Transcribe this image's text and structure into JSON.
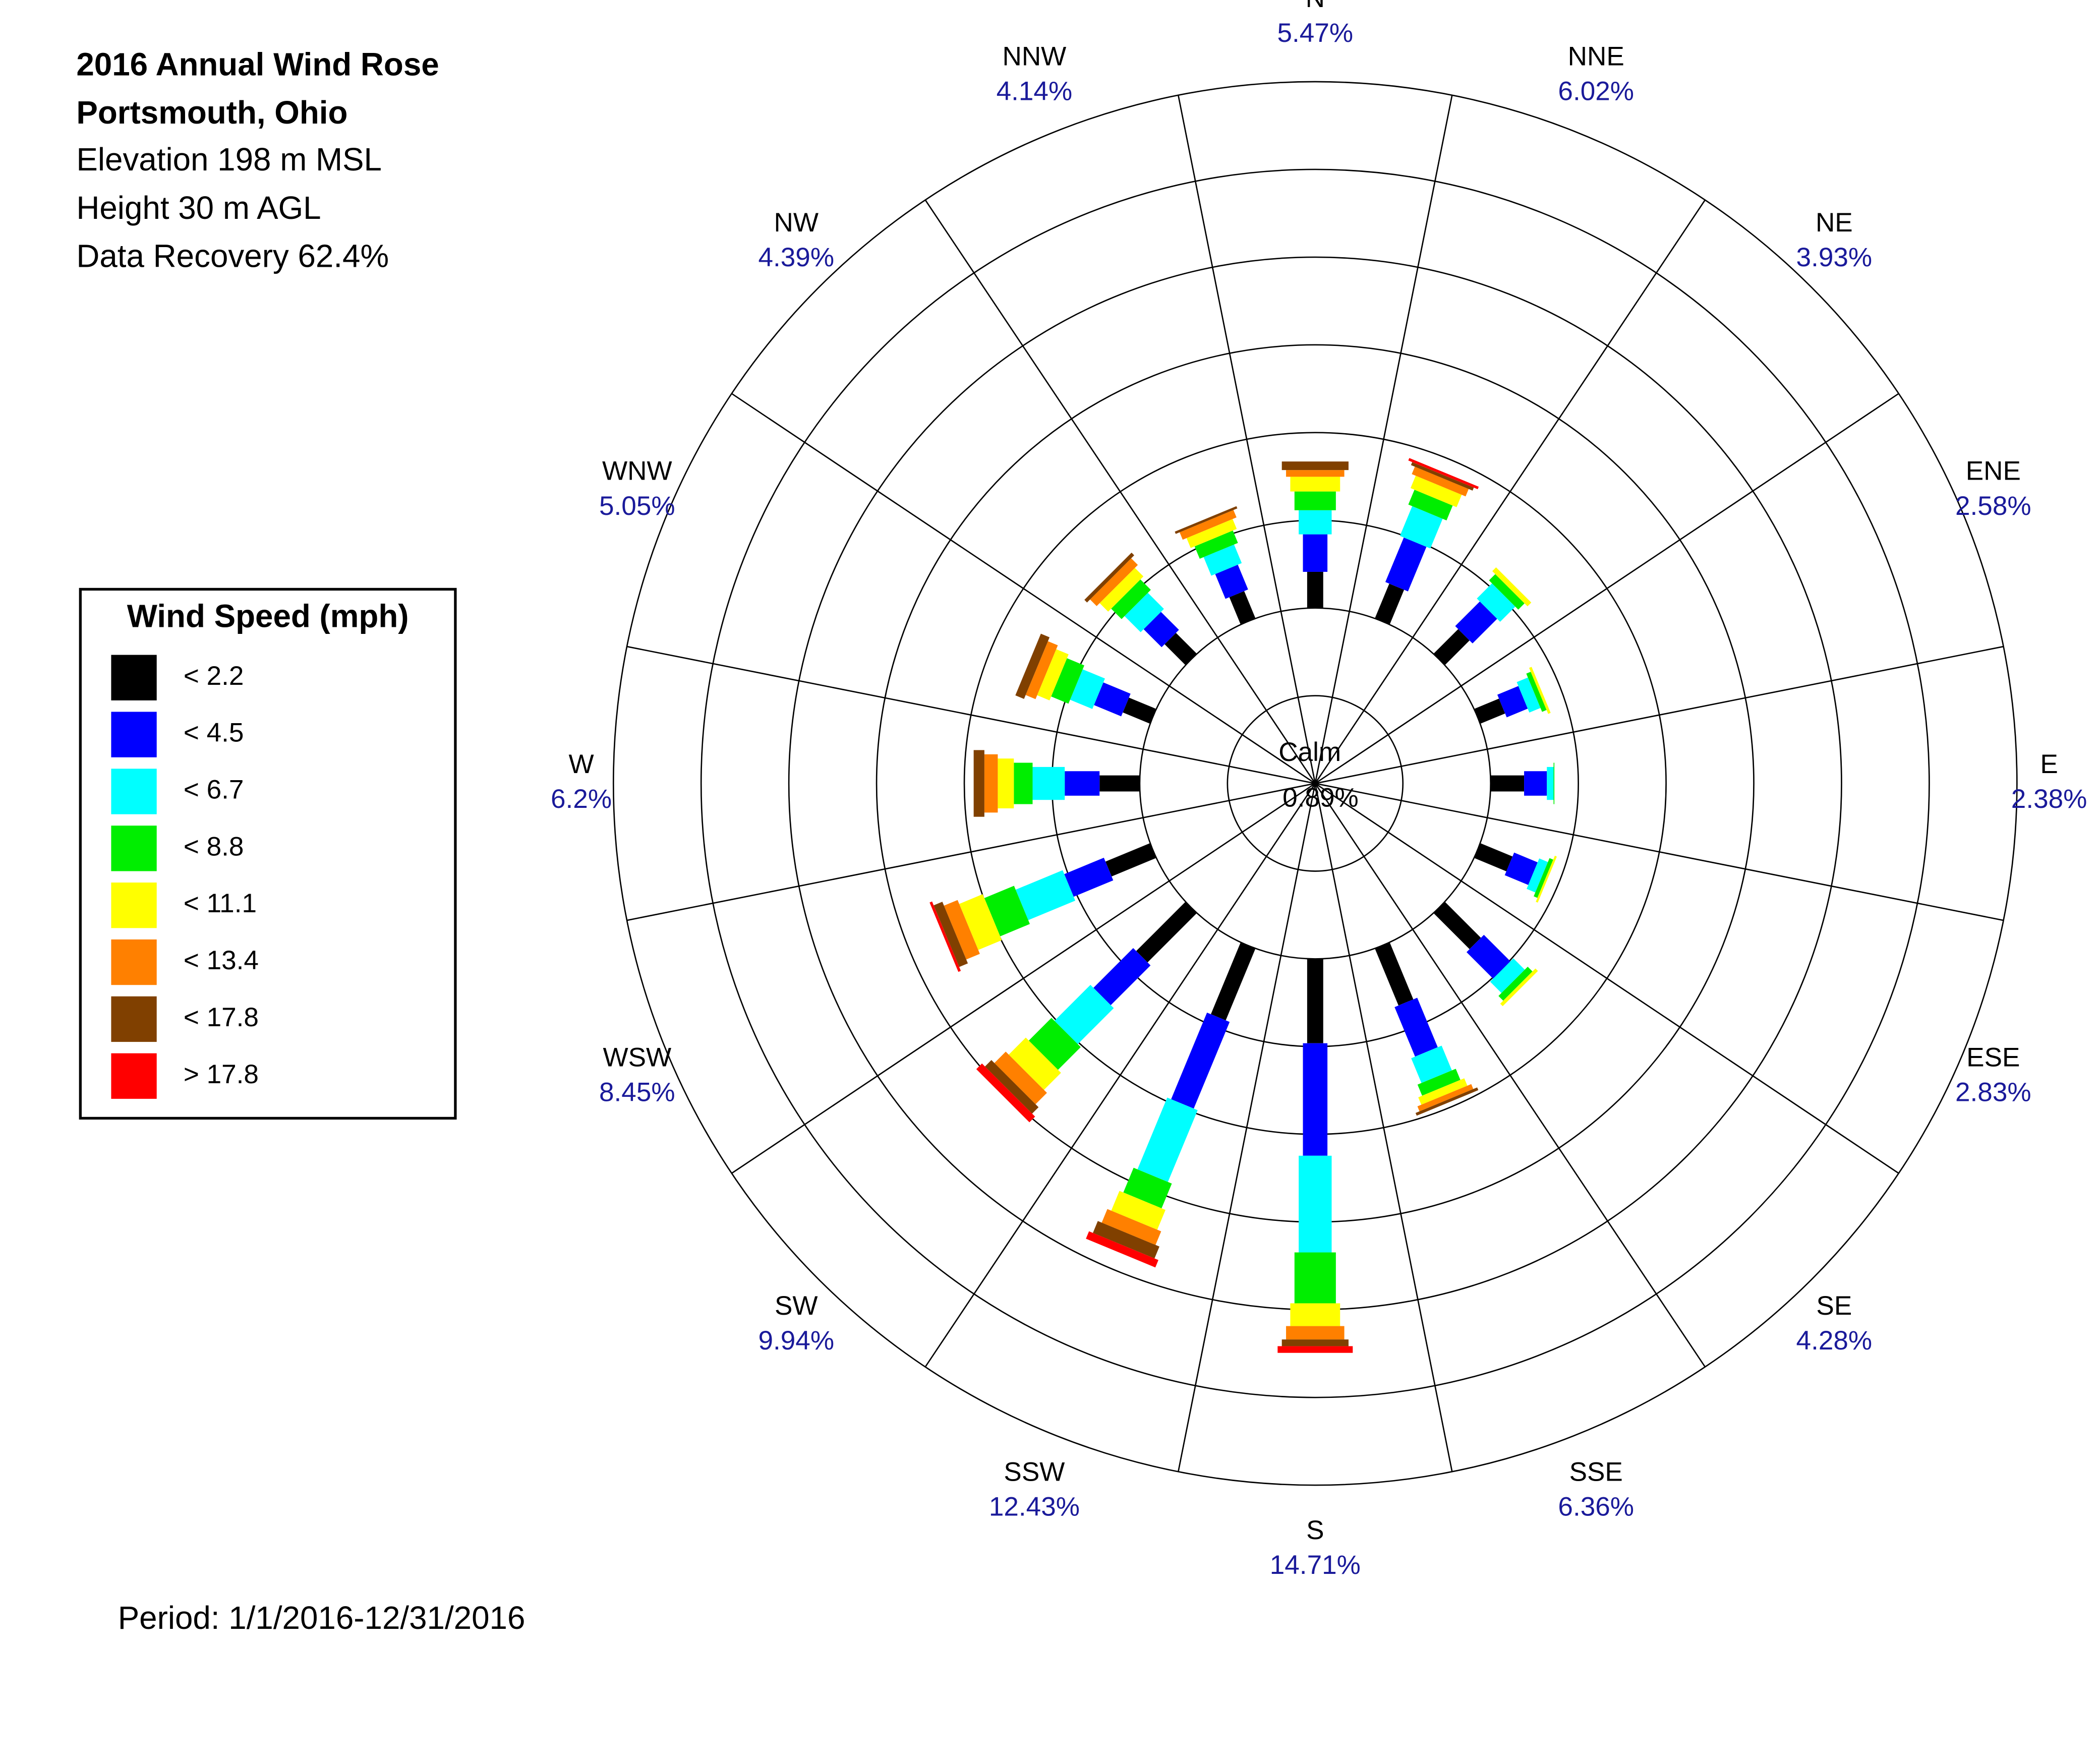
{
  "chart_data": {
    "type": "windrose",
    "title": "2016 Annual Wind Rose",
    "subtitle": "Portsmouth, Ohio",
    "notes": [
      "Elevation 198 m MSL",
      "Height 30 m AGL",
      "Data Recovery 62.4%"
    ],
    "legend_title": "Wind Speed (mph)",
    "caption": "Period: 1/1/2016-12/31/2016",
    "categories": [
      "N",
      "NNE",
      "NE",
      "ENE",
      "E",
      "ESE",
      "SE",
      "SSE",
      "S",
      "SSW",
      "SW",
      "WSW",
      "W",
      "WNW",
      "NW",
      "NNW"
    ],
    "totals": {
      "values": [
        5.47,
        6.02,
        3.93,
        2.58,
        2.38,
        2.83,
        4.28,
        6.36,
        14.71,
        12.43,
        9.94,
        8.45,
        6.2,
        5.05,
        4.39,
        4.14
      ],
      "value_labels": [
        "5.47%",
        "6.02%",
        "3.93%",
        "2.58%",
        "2.38%",
        "2.83%",
        "4.28%",
        "6.36%",
        "14.71%",
        "12.43%",
        "9.94%",
        "8.45%",
        "6.2%",
        "5.05%",
        "4.39%",
        "4.14%"
      ]
    },
    "calm": {
      "label": "Calm",
      "value": 0.89,
      "value_label": "0.89%"
    },
    "series": [
      {
        "name": "< 2.2",
        "color": "#000000",
        "values": [
          1.35,
          1.4,
          1.3,
          1.0,
          1.25,
          1.3,
          1.9,
          2.3,
          3.15,
          2.9,
          2.6,
          1.8,
          1.5,
          1.1,
          1.1,
          1.1
        ]
      },
      {
        "name": "< 4.5",
        "color": "#0000ff",
        "values": [
          1.4,
          1.8,
          1.3,
          0.85,
          0.85,
          0.95,
          1.4,
          2.0,
          4.2,
          3.5,
          2.1,
          1.6,
          1.3,
          1.1,
          0.95,
          1.0
        ]
      },
      {
        "name": "< 6.7",
        "color": "#00ffff",
        "values": [
          0.9,
          1.2,
          0.8,
          0.45,
          0.25,
          0.35,
          0.6,
          1.0,
          3.61,
          2.9,
          1.9,
          1.9,
          1.2,
          0.9,
          0.85,
          0.75
        ]
      },
      {
        "name": "< 8.8",
        "color": "#00ee00",
        "values": [
          0.7,
          0.6,
          0.33,
          0.18,
          0.03,
          0.15,
          0.25,
          0.45,
          1.9,
          1.0,
          1.2,
          1.2,
          0.7,
          0.7,
          0.55,
          0.5
        ]
      },
      {
        "name": "< 11.1",
        "color": "#ffff00",
        "values": [
          0.55,
          0.5,
          0.2,
          0.1,
          0,
          0.08,
          0.13,
          0.3,
          0.85,
          0.8,
          0.9,
          0.95,
          0.6,
          0.5,
          0.45,
          0.4
        ]
      },
      {
        "name": "< 13.4",
        "color": "#ff8000",
        "values": [
          0.25,
          0.3,
          0,
          0,
          0,
          0,
          0,
          0.2,
          0.5,
          0.55,
          0.6,
          0.55,
          0.5,
          0.4,
          0.35,
          0.3
        ]
      },
      {
        "name": "< 17.8",
        "color": "#804000",
        "values": [
          0.32,
          0.12,
          0,
          0,
          0,
          0,
          0,
          0.11,
          0.25,
          0.48,
          0.34,
          0.35,
          0.4,
          0.35,
          0.14,
          0.09
        ]
      },
      {
        "name": "> 17.8",
        "color": "#ff0000",
        "values": [
          0,
          0.1,
          0,
          0,
          0,
          0,
          0,
          0,
          0.25,
          0.3,
          0.3,
          0.1,
          0,
          0,
          0,
          0
        ]
      }
    ]
  }
}
